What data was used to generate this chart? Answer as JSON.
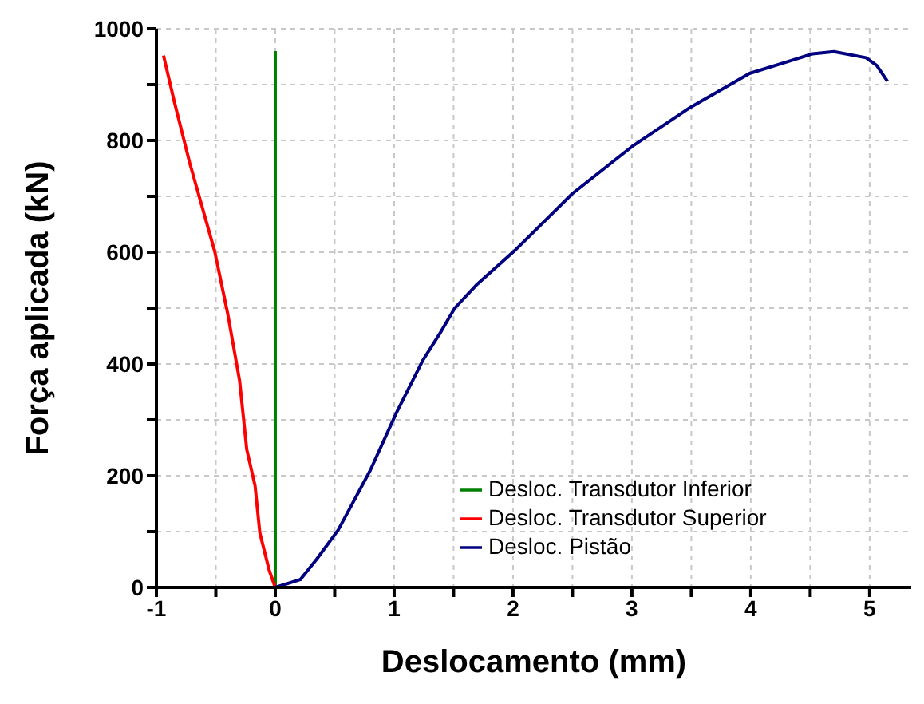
{
  "chart_data": {
    "type": "line",
    "xlabel": "Deslocamento (mm)",
    "ylabel": "Força aplicada (kN)",
    "xlim": [
      -1,
      5.35
    ],
    "xticks": [
      -1,
      {
        "value": -0.5,
        "label": null
      },
      0,
      {
        "value": 0.5,
        "label": null
      },
      1,
      {
        "value": 1.5,
        "label": null
      },
      2,
      {
        "value": 2.5,
        "label": null
      },
      3,
      {
        "value": 3.5,
        "label": null
      },
      4,
      {
        "value": 4.5,
        "label": null
      },
      5
    ],
    "ylim": [
      0,
      1000
    ],
    "yticks": [
      0,
      {
        "value": 100,
        "label": null
      },
      200,
      {
        "value": 300,
        "label": null
      },
      400,
      {
        "value": 500,
        "label": null
      },
      600,
      {
        "value": 700,
        "label": null
      },
      800,
      {
        "value": 900,
        "label": null
      },
      1000
    ],
    "grid": true,
    "legend": "bottom right",
    "series": [
      {
        "name": "Desloc. Transdutor Inferior",
        "color": "#008000",
        "x": [
          0,
          0
        ],
        "values": [
          0,
          960
        ]
      },
      {
        "name": "Desloc. Transdutor Superior",
        "color": "#ff0000",
        "x": [
          -0.94,
          -0.85,
          -0.72,
          -0.51,
          -0.4,
          -0.3,
          -0.24,
          -0.17,
          -0.13,
          -0.05,
          0
        ],
        "values": [
          952,
          870,
          760,
          602,
          490,
          370,
          247,
          182,
          98,
          30,
          0
        ]
      },
      {
        "name": "Desloc. Pistão",
        "color": "#000080",
        "x": [
          0,
          0.21,
          0.35,
          0.53,
          0.8,
          1.02,
          1.24,
          1.38,
          1.51,
          1.69,
          2.01,
          2.5,
          3,
          3.49,
          3.99,
          4.34,
          4.52,
          4.7,
          4.97,
          5.06,
          5.15
        ],
        "values": [
          0,
          14,
          51,
          103,
          210,
          313,
          406,
          453,
          500,
          541,
          602,
          705,
          789,
          859,
          920,
          943,
          955,
          959,
          948,
          934,
          906
        ]
      }
    ]
  }
}
